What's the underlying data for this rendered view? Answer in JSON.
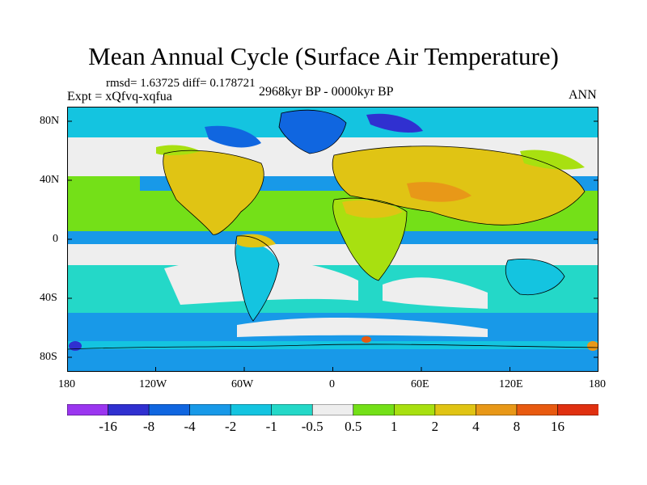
{
  "title": "Mean Annual Cycle (Surface Air Temperature)",
  "stats": {
    "rmsd_label": "rmsd=",
    "rmsd": "1.63725",
    "diff_label": "diff=",
    "diff": "0.178721"
  },
  "experiment": "Expt = xQfvq-xqfua",
  "period": "2968kyr BP - 0000kyr BP",
  "season": "ANN",
  "y_ticks": [
    "80N",
    "40N",
    "0",
    "40S",
    "80S"
  ],
  "x_ticks": [
    "180",
    "120W",
    "60W",
    "0",
    "60E",
    "120E",
    "180"
  ],
  "legend": {
    "labels": [
      "-16",
      "-8",
      "-4",
      "-2",
      "-1",
      "-0.5",
      "0.5",
      "1",
      "2",
      "4",
      "8",
      "16"
    ],
    "colors": [
      "#9b36f0",
      "#3030d0",
      "#1066e0",
      "#1899e8",
      "#14c4e0",
      "#24d8c8",
      "#eeeeee",
      "#74e018",
      "#a8e010",
      "#e0c414",
      "#e89818",
      "#e85a10",
      "#e03010"
    ]
  },
  "map": {
    "land_regions": [
      {
        "name": "north-america",
        "anomaly_class": "warm"
      },
      {
        "name": "south-america",
        "anomaly_class": "cool"
      },
      {
        "name": "eurasia",
        "anomaly_class": "warm"
      },
      {
        "name": "africa",
        "anomaly_class": "warm"
      },
      {
        "name": "australia",
        "anomaly_class": "cool"
      },
      {
        "name": "greenland",
        "anomaly_class": "cold"
      },
      {
        "name": "antarctica",
        "anomaly_class": "cool"
      }
    ]
  }
}
